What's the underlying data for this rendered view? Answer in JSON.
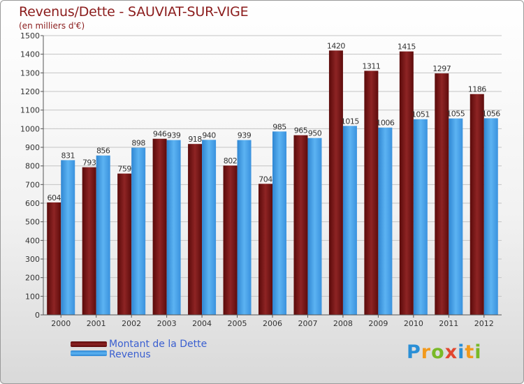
{
  "header": {
    "title": "Revenus/Dette - SAUVIAT-SUR-VIGE",
    "subtitle": "(en milliers d'€)"
  },
  "legend": {
    "items": [
      {
        "label": "Montant de la Dette",
        "color": "#7a1010"
      },
      {
        "label": "Revenus",
        "color": "#3e9ae6"
      }
    ]
  },
  "logo": {
    "letters": [
      "P",
      "r",
      "o",
      "x",
      "i",
      "t",
      "i"
    ],
    "colors": [
      "#2a8fd6",
      "#f29a1d",
      "#79b928",
      "#e2462f",
      "#2a8fd6",
      "#f29a1d",
      "#79b928"
    ]
  },
  "chart_data": {
    "type": "bar",
    "categories": [
      "2000",
      "2001",
      "2002",
      "2003",
      "2004",
      "2005",
      "2006",
      "2007",
      "2008",
      "2009",
      "2010",
      "2011",
      "2012"
    ],
    "series": [
      {
        "name": "Montant de la Dette",
        "color": "#7a1010",
        "values": [
          604,
          793,
          759,
          946,
          918,
          802,
          704,
          965,
          1420,
          1311,
          1415,
          1297,
          1186
        ]
      },
      {
        "name": "Revenus",
        "color": "#3e9ae6",
        "values": [
          831,
          856,
          898,
          939,
          940,
          939,
          985,
          950,
          1015,
          1006,
          1051,
          1055,
          1056
        ]
      }
    ],
    "title": "Revenus/Dette - SAUVIAT-SUR-VIGE",
    "ylabel": "(en milliers d'€)",
    "ylim": [
      0,
      1500
    ],
    "ytick_step": 100,
    "grid": true,
    "legend_position": "bottom-left"
  }
}
